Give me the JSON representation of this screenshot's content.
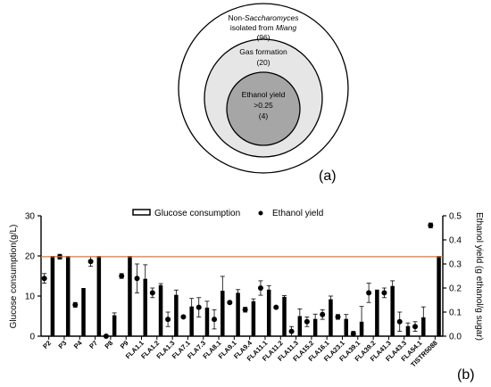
{
  "panel_a": {
    "label": "(a)",
    "outer_line1_prefix": "Non-",
    "outer_line1_italic": "Saccharomyces",
    "outer_line2_prefix": "isolated from ",
    "outer_line2_italic": "Miang",
    "outer_count": "(96)",
    "middle_label": "Gas formation",
    "middle_count": "(20)",
    "inner_label": "Ethanol yield",
    "inner_threshold": ">0.25",
    "inner_count": "(4)",
    "colors": {
      "outer": "#ffffff",
      "middle": "#e6e6e6",
      "inner": "#a6a6a6",
      "stroke": "#000000"
    }
  },
  "panel_b": {
    "label": "(b)"
  },
  "chart_data": {
    "type": "bar",
    "categories": [
      "P2",
      "P3",
      "P4",
      "P7",
      "P8",
      "P9",
      "FLA1.1",
      "FLA1.2",
      "FLA1.3",
      "FLA7.1",
      "FLA7.3",
      "FLA8.1",
      "FLA9.1",
      "FLA9.4",
      "FLA11.1",
      "FLA11.2",
      "FLA11.3",
      "FLA15.2",
      "FLA16.1",
      "FLA23.1",
      "FLA39.1",
      "FLA39.2",
      "FLA41.3",
      "FLA43.3",
      "FLA54.1",
      "TISTR5088"
    ],
    "series": [
      {
        "name": "Glucose consumption",
        "axis": "left",
        "mark": "bar",
        "values": [
          20,
          20,
          12,
          20,
          5.2,
          20,
          14.3,
          12.7,
          10.3,
          7.4,
          7.1,
          11.3,
          10.8,
          8.7,
          11.6,
          9.8,
          5.0,
          4.3,
          9.2,
          4.3,
          3.6,
          11.6,
          12.5,
          2.5,
          4.7,
          20
        ],
        "errors": [
          0,
          0,
          0,
          0,
          0.6,
          0,
          3.5,
          0.4,
          1.2,
          2.0,
          1.6,
          3.6,
          0.8,
          0.6,
          1.0,
          0.3,
          1.8,
          1.2,
          0.8,
          1.1,
          3.8,
          0,
          1.3,
          0.8,
          2.6,
          0
        ]
      },
      {
        "name": "Ethanol yield",
        "axis": "right",
        "mark": "point",
        "values": [
          0.24,
          0.33,
          0.13,
          0.31,
          0.0,
          0.25,
          0.24,
          0.18,
          0.07,
          0.08,
          0.12,
          0.07,
          0.14,
          0.11,
          0.2,
          0.12,
          0.02,
          0.06,
          0.09,
          0.08,
          0.01,
          0.18,
          0.18,
          0.06,
          0.04,
          0.46
        ],
        "errors": [
          0.02,
          0.01,
          0.01,
          0.02,
          0.0,
          0.01,
          0.06,
          0.02,
          0.03,
          0.0,
          0.04,
          0.04,
          0.0,
          0.01,
          0.03,
          0.0,
          0.02,
          0.02,
          0.02,
          0.01,
          0.01,
          0.04,
          0.02,
          0.04,
          0.02,
          0.01
        ]
      }
    ],
    "reference_line": {
      "axis": "right",
      "value": 0.33,
      "color": "#e8742c"
    },
    "xlabel": "",
    "ylabel": "Glucose consumption(g/L)",
    "y2label": "Ethanol yield (g ethanol/g sugar)",
    "ylim": [
      0,
      30
    ],
    "y2lim": [
      0,
      0.5
    ],
    "yticks": [
      0,
      10,
      20,
      30
    ],
    "y2ticks": [
      "0.0",
      "0.1",
      "0.2",
      "0.3",
      "0.4",
      "0.5"
    ],
    "grid": false,
    "legend": "top-center",
    "colors": {
      "bar": "#000000",
      "point": "#000000"
    }
  }
}
